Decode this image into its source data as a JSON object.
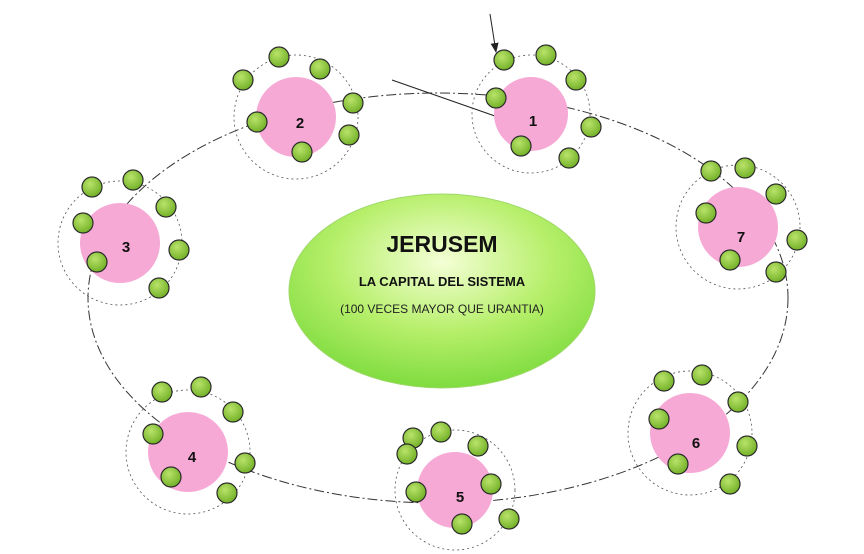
{
  "diagram": {
    "center": {
      "title": "JERUSEM",
      "subtitle": "LA CAPITAL DEL SISTEMA",
      "note": "(100 VECES MAYOR QUE URANTIA)"
    },
    "planets": [
      {
        "label": "1"
      },
      {
        "label": "2"
      },
      {
        "label": "3"
      },
      {
        "label": "4"
      },
      {
        "label": "5"
      },
      {
        "label": "6"
      },
      {
        "label": "7"
      }
    ],
    "colors": {
      "planet_fill": "#f7a9d6",
      "satellite_fill": "#8dc43a",
      "satellite_stroke": "#2b2b2b",
      "center_light": "#f4ffd6",
      "center_mid": "#b7ef6b",
      "center_dark": "#7fdc3f",
      "orbit_line": "#333333"
    }
  }
}
